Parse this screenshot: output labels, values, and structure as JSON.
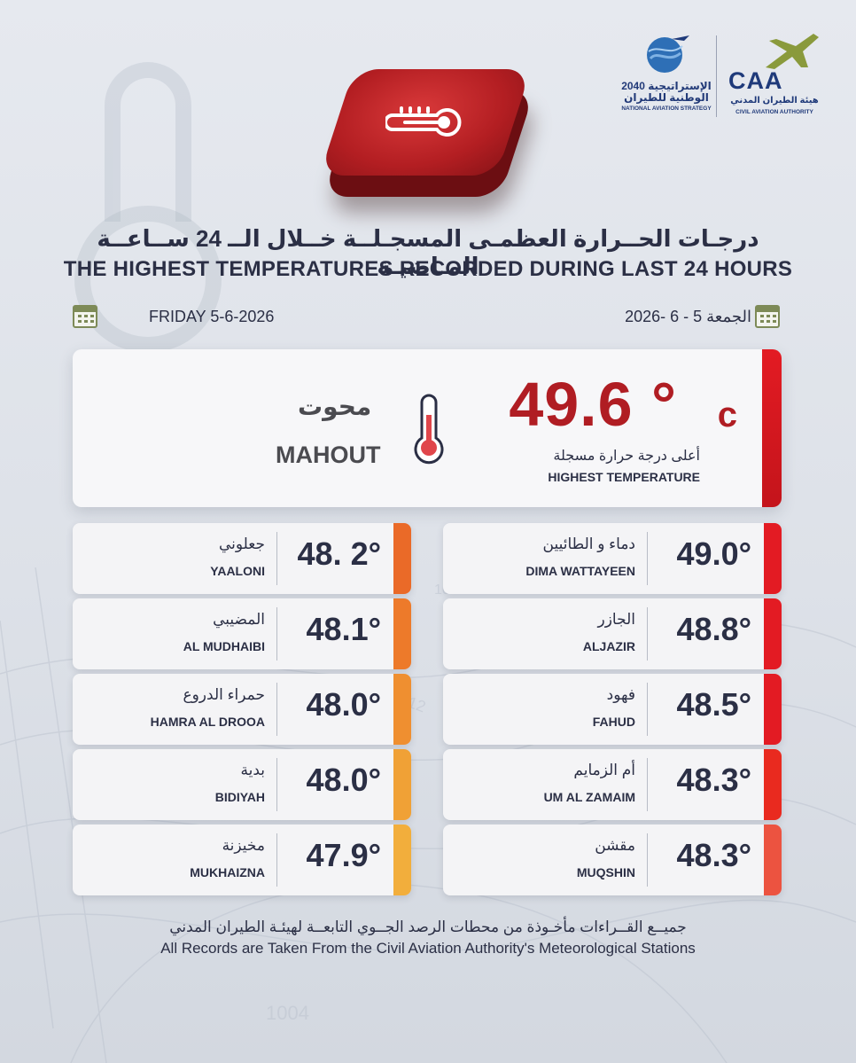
{
  "logos": {
    "strategy_ar": "الإستراتيجية 2040 الوطنية للطيران",
    "strategy_en": "NATIONAL AVIATION STRATEGY",
    "caa_letters": "CAA",
    "caa_ar": "هيئة الطيران المدني",
    "caa_en": "CIVIL AVIATION AUTHORITY"
  },
  "title": {
    "ar": "درجـات الحــرارة العظمـى المسجـلــة خــلال الــ 24 ســاعــة المـاضيـة",
    "en": "THE HIGHEST TEMPERATURES RECORDED DURING LAST 24 HOURS"
  },
  "date": {
    "en": "FRIDAY 5-6-2026",
    "ar": "الجمعة 5 - 6 -2026"
  },
  "highest": {
    "value": "49.6 °",
    "unit": "c",
    "label_ar": "أعلى درجة حرارة مسجلة",
    "label_en": "HIGHEST TEMPERATURE",
    "place_ar": "محوت",
    "place_en": "MAHOUT"
  },
  "stations_right": [
    {
      "ar": "دماء و الطائيين",
      "en": "DIMA WATTAYEEN",
      "temp": "49.0°",
      "color": "#e31b23"
    },
    {
      "ar": "الجازر",
      "en": "ALJAZIR",
      "temp": "48.8°",
      "color": "#e31b23"
    },
    {
      "ar": "فهود",
      "en": "FAHUD",
      "temp": "48.5°",
      "color": "#e31b23"
    },
    {
      "ar": "أم الزمايم",
      "en": "UM AL ZAMAIM",
      "temp": "48.3°",
      "color": "#e92a1f"
    },
    {
      "ar": "مقشن",
      "en": "MUQSHIN",
      "temp": "48.3°",
      "color": "#ec5340"
    }
  ],
  "stations_left": [
    {
      "ar": "جعلوني",
      "en": "YAALONI",
      "temp": "48. 2°",
      "color": "#ea6a28"
    },
    {
      "ar": "المضيبي",
      "en": "AL MUDHAIBI",
      "temp": "48.1°",
      "color": "#ed7a2a"
    },
    {
      "ar": "حمراء الدروع",
      "en": "HAMRA AL DROOA",
      "temp": "48.0°",
      "color": "#ef8f30"
    },
    {
      "ar": "بدية",
      "en": "BIDIYAH",
      "temp": "48.0°",
      "color": "#f0a136"
    },
    {
      "ar": "مخيزنة",
      "en": "MUKHAIZNA",
      "temp": "47.9°",
      "color": "#f2ae3c"
    }
  ],
  "footer": {
    "ar": "جميــع القــراءات مأخـوذة من محطات الرصد الجــوي التابعــة لهيئـة الطيران المدني",
    "en": "All Records are Taken From the Civil Aviation Authority's Meteorological Stations"
  },
  "background_numbers": [
    "1004",
    "1012",
    "10"
  ]
}
